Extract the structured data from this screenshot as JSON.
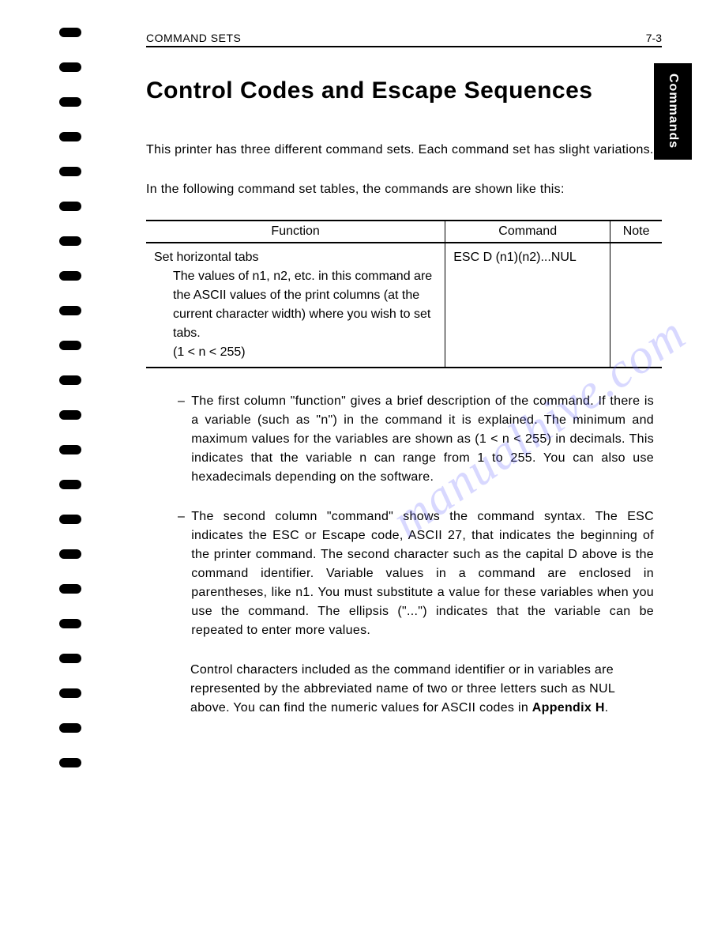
{
  "header": {
    "section": "COMMAND SETS",
    "page_number": "7-3"
  },
  "side_tab": "Commands",
  "title": "Control Codes and Escape Sequences",
  "intro_paragraphs": [
    "This printer has three different command sets. Each command set has slight variations.",
    "In the following command set tables, the commands are shown like this:"
  ],
  "table": {
    "headers": [
      "Function",
      "Command",
      "Note"
    ],
    "row": {
      "function_title": "Set horizontal tabs",
      "function_desc": "The values of n1, n2, etc. in this command are the ASCII values of the print columns (at the current character width) where you wish to set tabs.\n(1 < n < 255)",
      "command": "ESC D (n1)(n2)...NUL",
      "note": ""
    }
  },
  "bullets": [
    "The first column \"function\" gives a brief description of the command. If there is a variable (such as \"n\") in the command it is explained. The minimum and maximum values for the variables are shown as (1 < n < 255) in decimals. This indicates that the variable n can range from 1 to 255. You can also use hexadecimals depending on the software.",
    "The second column \"command\" shows the command syntax. The ESC indicates the ESC or Escape code, ASCII 27, that indicates the beginning of the printer command. The second character such as the capital D above is the command identifier. Variable values in a command are enclosed in parentheses, like n1. You must substitute a value for these variables when you use the command. The ellipsis (\"...\") indicates that the variable can be repeated to enter more values."
  ],
  "extra_paragraph_parts": {
    "before": "Control characters included as the command identifier or in variables are represented by the abbreviated name of two or three letters such as NUL above. You can find the numeric values for ASCII codes in ",
    "bold": "Appendix H",
    "after": "."
  },
  "watermark": "manualhive.com",
  "colors": {
    "text": "#000000",
    "background": "#ffffff",
    "watermark": "rgba(100,100,255,0.25)",
    "tab_bg": "#000000",
    "tab_text": "#ffffff"
  },
  "spiral_count": 22
}
